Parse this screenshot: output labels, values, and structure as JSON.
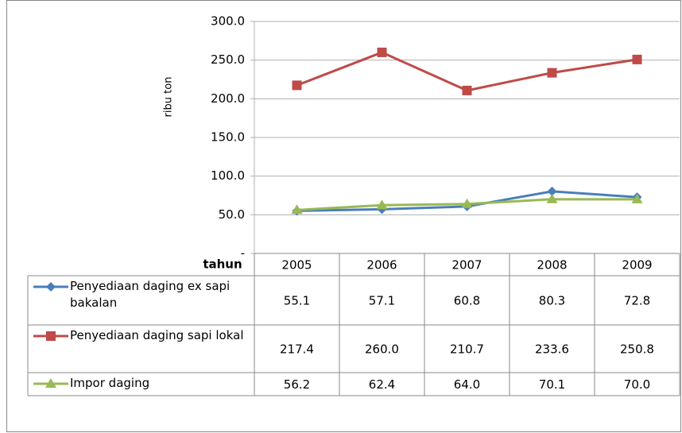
{
  "chart_data": {
    "type": "line",
    "y_label": "ribu ton",
    "x_label": "tahun",
    "categories": [
      "2005",
      "2006",
      "2007",
      "2008",
      "2009"
    ],
    "series": [
      {
        "name": "Penyediaan daging ex sapi bakalan",
        "color": "#4a7ebb",
        "marker": "diamond",
        "values": [
          55.1,
          57.1,
          60.8,
          80.3,
          72.8
        ],
        "value_labels": [
          "55.1",
          "57.1",
          "60.8",
          "80.3",
          "72.8"
        ]
      },
      {
        "name": "Penyediaan daging sapi lokal",
        "color": "#be4b48",
        "marker": "square",
        "values": [
          217.4,
          260,
          210.7,
          233.6,
          250.8
        ],
        "value_labels": [
          "217.4",
          "260.0",
          "210.7",
          "233.6",
          "250.8"
        ]
      },
      {
        "name": "Impor daging",
        "color": "#98b954",
        "marker": "triangle",
        "values": [
          56.2,
          62.4,
          64,
          70.1,
          70
        ],
        "value_labels": [
          "56.2",
          "62.4",
          "64.0",
          "70.1",
          "70.0"
        ]
      }
    ],
    "ylim": [
      0,
      300
    ],
    "yticks": [
      {
        "value": 0,
        "label": "-"
      },
      {
        "value": 50,
        "label": "50.0"
      },
      {
        "value": 100,
        "label": "100.0"
      },
      {
        "value": 150,
        "label": "150.0"
      },
      {
        "value": 200,
        "label": "200.0"
      },
      {
        "value": 250,
        "label": "250.0"
      },
      {
        "value": 300,
        "label": "300.0"
      }
    ],
    "grid": true
  }
}
